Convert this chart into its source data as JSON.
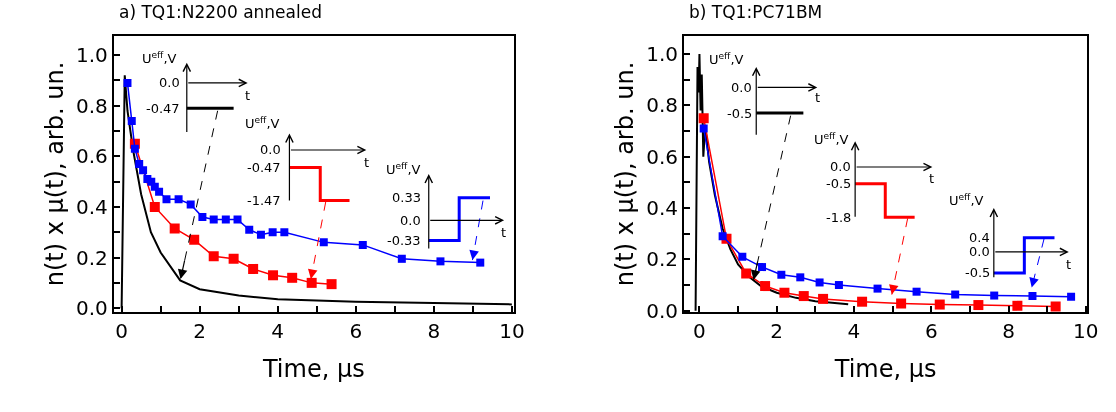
{
  "chart_data": [
    {
      "type": "line",
      "title": "a) TQ1:N2200 annealed",
      "xlabel": "Time, μs",
      "ylabel": "n(t) x μ(t), arb. un.",
      "xlim": [
        -0.2,
        10.05
      ],
      "ylim": [
        -0.015,
        1.075
      ],
      "xticks": [
        0,
        {
          "value": 1,
          "label": null
        },
        2,
        {
          "value": 3,
          "label": null
        },
        4,
        {
          "value": 5,
          "label": null
        },
        6,
        {
          "value": 7,
          "label": null
        },
        8,
        {
          "value": 9,
          "label": null
        },
        10
      ],
      "yticks": [
        {
          "value": 0,
          "label": "0.0"
        },
        {
          "value": 0.1,
          "label": null
        },
        0.2,
        {
          "value": 0.3,
          "label": null
        },
        0.4,
        {
          "value": 0.5,
          "label": null
        },
        0.6,
        {
          "value": 0.7,
          "label": null
        },
        0.8,
        {
          "value": 0.9,
          "label": null
        },
        {
          "value": 1,
          "label": "1.0"
        }
      ],
      "series": [
        {
          "color": "#000000",
          "marker": "none",
          "x": [
            0.0,
            0.08,
            0.15,
            0.3,
            0.5,
            0.75,
            1.0,
            1.5,
            2.0,
            3.0,
            4.0,
            5.0,
            6.0,
            8.0,
            10.0
          ],
          "values": [
            0.0,
            0.92,
            0.78,
            0.62,
            0.45,
            0.3,
            0.22,
            0.11,
            0.075,
            0.05,
            0.035,
            0.03,
            0.025,
            0.02,
            0.015
          ]
        },
        {
          "color": "#ff0000",
          "marker": "square",
          "x": [
            0.34,
            0.85,
            1.36,
            1.86,
            2.36,
            2.87,
            3.37,
            3.88,
            4.37,
            4.87,
            5.38
          ],
          "values": [
            0.65,
            0.4,
            0.315,
            0.27,
            0.205,
            0.195,
            0.155,
            0.13,
            0.12,
            0.1,
            0.095
          ]
        },
        {
          "color": "#0000ff",
          "marker": "square",
          "x": [
            0.15,
            0.26,
            0.34,
            0.45,
            0.55,
            0.66,
            0.76,
            0.85,
            0.96,
            1.15,
            1.46,
            1.77,
            2.07,
            2.36,
            2.67,
            2.97,
            3.27,
            3.57,
            3.87,
            4.17,
            5.18,
            6.18,
            7.18,
            8.17,
            9.19
          ],
          "values": [
            0.89,
            0.74,
            0.63,
            0.57,
            0.545,
            0.51,
            0.5,
            0.48,
            0.46,
            0.43,
            0.43,
            0.41,
            0.36,
            0.35,
            0.35,
            0.35,
            0.31,
            0.29,
            0.3,
            0.3,
            0.26,
            0.25,
            0.195,
            0.185,
            0.18
          ]
        }
      ],
      "annotations": [
        "U$^{eff}$,V",
        "0.0",
        "-0.47",
        "t",
        "U$^{eff}$,V",
        "0.0",
        "-0.47",
        "-1.47",
        "t",
        "U$^{eff}$,V",
        "0.33",
        "0.0",
        "-0.33",
        "t"
      ]
    },
    {
      "type": "line",
      "title": "b) TQ1:PC71BM",
      "xlabel": "Time, μs",
      "ylabel": "n(t) x μ(t), arb. un.",
      "xlim": [
        -0.4,
        10.04
      ],
      "ylim": [
        -0.005,
        1.07
      ],
      "xticks": [
        0,
        {
          "value": 1,
          "label": null
        },
        2,
        {
          "value": 3,
          "label": null
        },
        4,
        {
          "value": 5,
          "label": null
        },
        6,
        {
          "value": 7,
          "label": null
        },
        8,
        {
          "value": 9,
          "label": null
        },
        10
      ],
      "yticks": [
        {
          "value": 0,
          "label": "0.0"
        },
        {
          "value": 0.1,
          "label": null
        },
        0.2,
        {
          "value": 0.3,
          "label": null
        },
        0.4,
        {
          "value": 0.5,
          "label": null
        },
        0.6,
        {
          "value": 0.7,
          "label": null
        },
        0.8,
        {
          "value": 0.9,
          "label": null
        },
        {
          "value": 1,
          "label": "1.0"
        }
      ],
      "series": [
        {
          "color": "#000000",
          "marker": "none",
          "x": [
            -0.1,
            -0.05,
            -0.02,
            0.0,
            0.03,
            0.06,
            0.1,
            0.15,
            0.25,
            0.4,
            0.6,
            0.8,
            1.0,
            1.3,
            1.6,
            2.0,
            2.5,
            3.0,
            3.5,
            3.85
          ],
          "values": [
            0.0,
            0.95,
            0.85,
            1.0,
            0.78,
            0.92,
            0.6,
            0.72,
            0.58,
            0.45,
            0.32,
            0.24,
            0.18,
            0.13,
            0.095,
            0.07,
            0.05,
            0.037,
            0.03,
            0.025
          ]
        },
        {
          "color": "#ff0000",
          "marker": "square",
          "x": [
            0.11,
            0.7,
            1.21,
            1.7,
            2.2,
            2.7,
            3.2,
            4.21,
            5.22,
            6.22,
            7.22,
            8.23,
            9.22
          ],
          "values": [
            0.75,
            0.28,
            0.145,
            0.096,
            0.07,
            0.057,
            0.046,
            0.035,
            0.028,
            0.024,
            0.022,
            0.019,
            0.016
          ]
        },
        {
          "color": "#0000ff",
          "marker": "square",
          "x": [
            0.11,
            0.6,
            1.11,
            1.62,
            2.12,
            2.61,
            3.11,
            3.61,
            4.61,
            5.62,
            6.62,
            7.63,
            8.62,
            9.62
          ],
          "values": [
            0.71,
            0.29,
            0.21,
            0.17,
            0.14,
            0.13,
            0.11,
            0.1,
            0.086,
            0.074,
            0.063,
            0.059,
            0.057,
            0.054
          ]
        }
      ],
      "annotations": [
        "U$^{eff}$,V",
        "0.0",
        "-0.5",
        "t",
        "U$^{eff}$,V",
        "0.0",
        "-0.5",
        "-1.8",
        "t",
        "U$^{eff}$,V",
        "0.4",
        "0.0",
        "-0.5",
        "t"
      ]
    }
  ]
}
